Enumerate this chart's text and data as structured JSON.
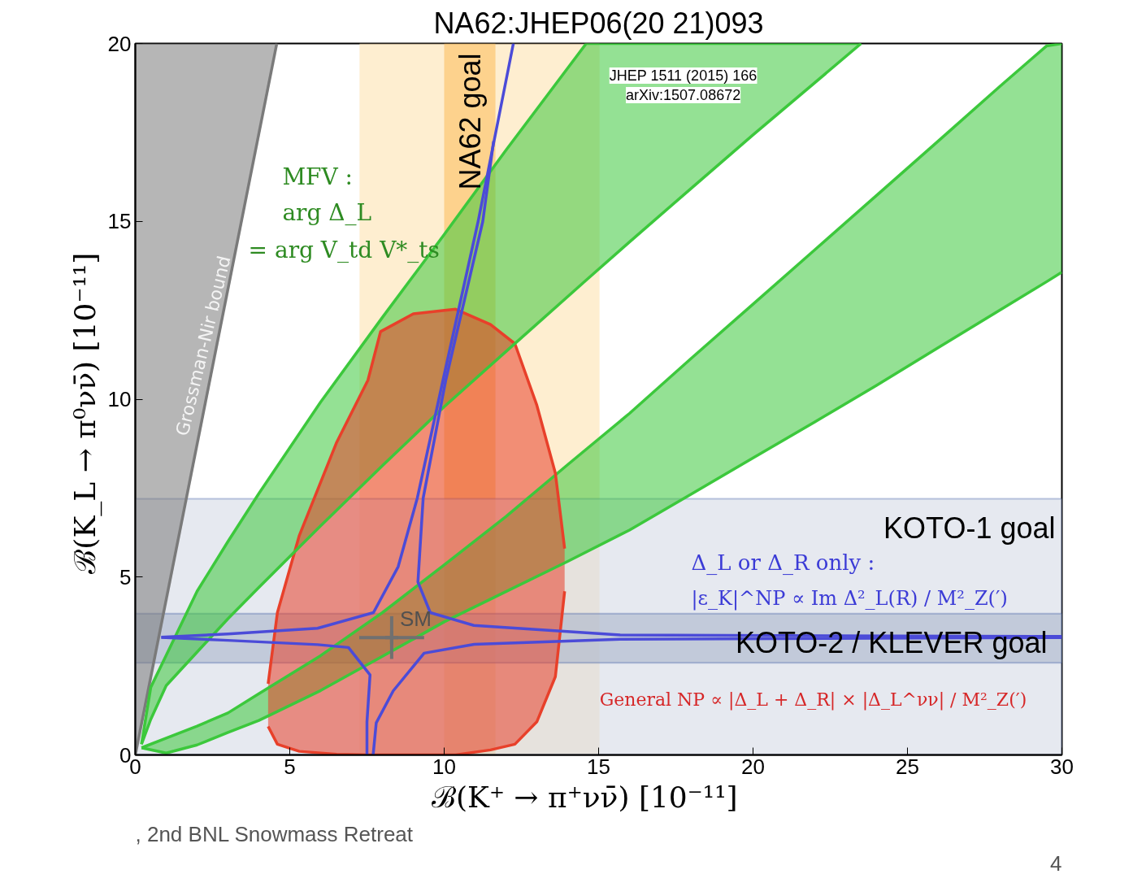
{
  "chart_data": {
    "type": "line",
    "title": "NA62:JHEP06(20 21)093",
    "xlabel": "ℬ(K⁺ → π⁺νν̄)    [10⁻¹¹]",
    "ylabel": "ℬ(K_L → π⁰νν̄)    [10⁻¹¹]",
    "xlim": [
      0,
      30
    ],
    "ylim": [
      0,
      20
    ],
    "xticks": [
      0,
      5,
      10,
      15,
      20,
      25,
      30
    ],
    "yticks": [
      0,
      5,
      10,
      15,
      20
    ],
    "grid": false,
    "series": [
      {
        "color": "#7a7a7a",
        "x": [
          0,
          4.58
        ],
        "values": [
          0,
          20
        ],
        "lower": [
          0,
          20
        ],
        "upper": [
          20,
          20
        ]
      },
      {
        "color": "#3cc83c",
        "x": [
          0.2,
          1,
          2,
          3,
          4,
          6,
          8,
          10,
          12,
          14,
          16,
          18,
          20,
          22,
          24,
          26,
          28,
          29.5,
          30
        ],
        "values": [
          0.2,
          0.47,
          0.81,
          1.18,
          1.72,
          2.79,
          4.0,
          5.34,
          6.7,
          8.16,
          9.6,
          11.15,
          12.67,
          14.2,
          15.73,
          17.26,
          18.8,
          19.93,
          20
        ],
        "lower": [
          0.2,
          0.05,
          0.28,
          0.63,
          0.97,
          1.81,
          2.77,
          3.74,
          4.59,
          5.44,
          6.32,
          7.33,
          8.35,
          9.36,
          10.39,
          11.45,
          12.51,
          13.3,
          13.57
        ],
        "upper": [
          0.2,
          0.47,
          0.81,
          1.18,
          1.72,
          2.79,
          4.0,
          5.34,
          6.7,
          8.16,
          9.6,
          11.15,
          12.67,
          14.2,
          15.73,
          17.26,
          18.8,
          19.93,
          20
        ]
      },
      {
        "color": "#3cc83c",
        "x": [
          0.2,
          0.5,
          1,
          2,
          3,
          4,
          6,
          8,
          10,
          12,
          14.6,
          16,
          18,
          20,
          23.5
        ],
        "values": [
          0.3,
          1.9,
          2.8,
          4.6,
          6.0,
          7.35,
          9.92,
          12.3,
          14.63,
          17.0,
          20,
          20,
          20,
          20,
          20
        ],
        "lower": [
          0.3,
          1.0,
          1.95,
          2.89,
          3.83,
          4.71,
          6.44,
          8.13,
          9.79,
          11.34,
          13.35,
          14.42,
          15.93,
          17.43,
          20
        ],
        "upper": [
          0.3,
          1.9,
          2.8,
          4.6,
          6.0,
          7.35,
          9.92,
          12.3,
          14.63,
          17.0,
          20,
          20,
          20,
          20,
          20
        ]
      },
      {
        "color": "#e8402a",
        "x": [
          4.3,
          4.6,
          5.31,
          6.52,
          7.53,
          7.94,
          9,
          10.37,
          11.5,
          12.29,
          13.0,
          13.6,
          13.9
        ],
        "values": [
          2.0,
          4.0,
          6.17,
          8.79,
          10.53,
          11.9,
          12.4,
          12.53,
          12.1,
          11.56,
          9.83,
          7.92,
          5.8
        ],
        "lower": [
          0.8,
          0.3,
          0.1,
          0.02,
          0,
          0,
          0,
          0,
          0.14,
          0.3,
          0.93,
          2.2,
          4.6
        ],
        "upper": [
          2.0,
          4.0,
          6.17,
          8.79,
          10.53,
          11.9,
          12.4,
          12.53,
          12.1,
          11.56,
          9.83,
          7.92,
          5.8
        ]
      },
      {
        "color": "#3cc83c",
        "x": [
          0.2,
          1,
          2,
          3,
          4,
          6,
          8,
          10,
          12,
          14,
          16,
          18,
          20,
          22,
          24,
          26,
          28,
          29.5,
          30
        ],
        "values": [
          0.2,
          0.05,
          0.28,
          0.63,
          0.97,
          1.81,
          2.77,
          3.74,
          4.59,
          5.44,
          6.32,
          7.33,
          8.35,
          9.36,
          10.39,
          11.45,
          12.51,
          13.3,
          13.57
        ]
      },
      {
        "color": "#3cc83c",
        "x": [
          0.2,
          0.5,
          1,
          2,
          3,
          4,
          6,
          8,
          10,
          12,
          14.6,
          16,
          18,
          20,
          23.5
        ],
        "values": [
          0.3,
          1.0,
          1.95,
          2.89,
          3.83,
          4.71,
          6.44,
          8.13,
          9.79,
          11.34,
          13.35,
          14.42,
          15.93,
          17.43,
          20
        ]
      },
      {
        "color": "#e8402a",
        "x": [
          4.3,
          4.6,
          5.31,
          6.52,
          7.53,
          7.94,
          9,
          10.37,
          11.5,
          12.29,
          13.0,
          13.6,
          13.9
        ],
        "values": [
          0.8,
          0.3,
          0.1,
          0.02,
          0,
          0,
          0,
          0,
          0.14,
          0.3,
          0.93,
          2.2,
          4.6
        ]
      },
      {
        "color": "#4b4bd8",
        "x": [
          0.84,
          3,
          5.9,
          7.71,
          8.51,
          9.13,
          9.96,
          11.1,
          12.24
        ],
        "values": [
          3.31,
          3.4,
          3.56,
          4.0,
          5.29,
          7.22,
          10.53,
          15.0,
          20
        ]
      },
      {
        "color": "#4b4bd8",
        "x": [
          11.6,
          11.25,
          10.05,
          9.32,
          9.15,
          9.55,
          10.96,
          15.7,
          30
        ],
        "values": [
          17.25,
          15.0,
          10.53,
          7.22,
          4.86,
          4.0,
          3.64,
          3.37,
          3.33
        ]
      },
      {
        "color": "#4b4bd8",
        "x": [
          0.84,
          3,
          5.9,
          6.9,
          7.6,
          7.5,
          7.5
        ],
        "values": [
          3.3,
          3.22,
          3.1,
          3.02,
          2.25,
          0.93,
          0
        ]
      },
      {
        "color": "#4b4bd8",
        "x": [
          7.7,
          7.8,
          8.35,
          9.35,
          10.97,
          15.7,
          30
        ],
        "values": [
          0,
          0.9,
          1.8,
          2.86,
          3.11,
          3.25,
          3.3
        ]
      },
      {
        "type": "scatter",
        "name": "SM",
        "color": "#707070",
        "marker": "cross",
        "x": [
          8.3
        ],
        "values": [
          3.3
        ],
        "errors": [
          0.6
        ],
        "xerrors": [
          1.05
        ]
      }
    ],
    "bands": [
      {
        "axis": "x",
        "from": 7.26,
        "to": 15.03,
        "color": "#fde3b0"
      },
      {
        "axis": "x",
        "from": 10.0,
        "to": 11.66,
        "color": "#fbc060",
        "label": "NA62 goal"
      },
      {
        "axis": "y",
        "from": 0,
        "to": 7.2,
        "color": "#d5dbe6",
        "label": "KOTO-1 goal"
      },
      {
        "axis": "y",
        "from": 2.59,
        "to": 3.97,
        "color": "#aab6cc",
        "label": "KOTO-2 / KLEVER  goal"
      }
    ],
    "annotations": [
      "JHEP 1511 (2015) 166",
      "arXiv:1507.08672",
      "Grossman-Nir bound",
      "MFV :",
      "arg Δ_L",
      "= arg V_td V*_ts",
      "Δ_L  or  Δ_R  only :",
      "|ε_K|^NP ∝ Im Δ²_L(R) / M²_Z(′)",
      "General NP ∝ |Δ_L + Δ_R| × |Δ_L^νν| / M²_Z(′)",
      ", 2nd BNL Snowmass Retreat",
      "4"
    ]
  }
}
